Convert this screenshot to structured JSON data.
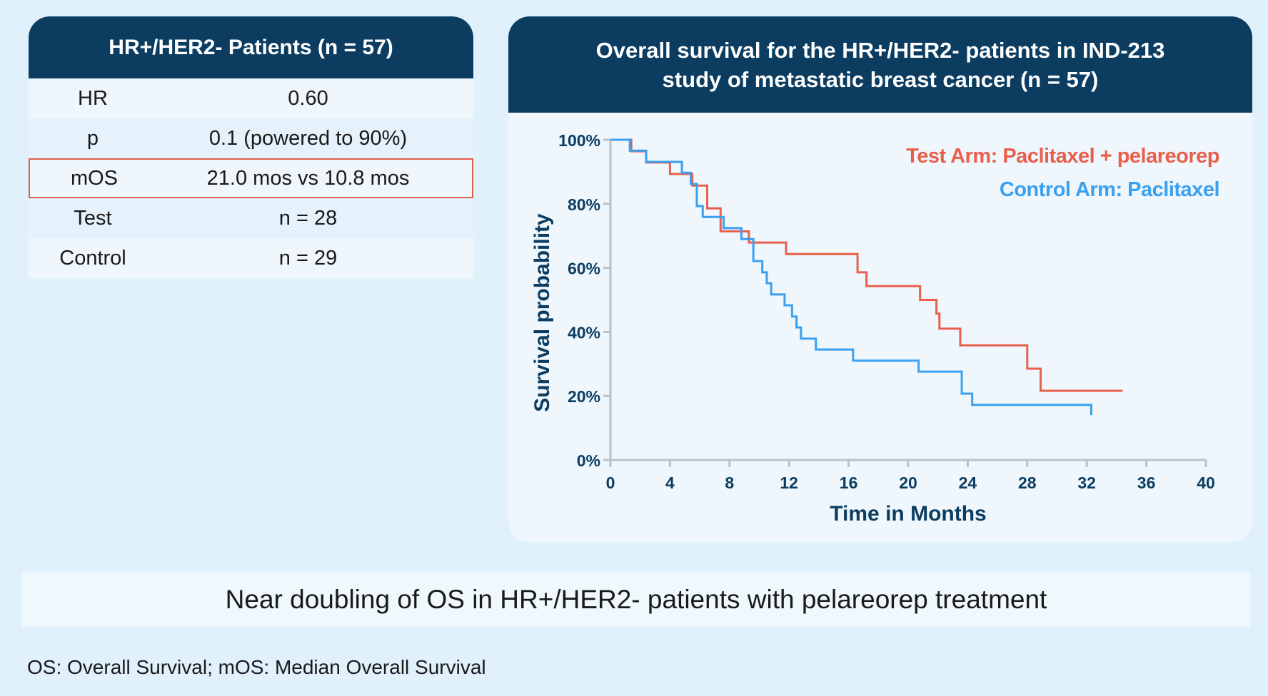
{
  "table": {
    "title": "HR+/HER2- Patients (n = 57)",
    "rows": [
      {
        "label": "HR",
        "value": "0.60"
      },
      {
        "label": "p",
        "value": "0.1 (powered to 90%)"
      },
      {
        "label": "mOS",
        "value": "21.0 mos vs 10.8 mos"
      },
      {
        "label": "Test",
        "value": "n = 28"
      },
      {
        "label": "Control",
        "value": "n = 29"
      }
    ]
  },
  "chart": {
    "title_line1": "Overall survival for the HR+/HER2- patients in IND-213",
    "title_line2": "study of metastatic breast cancer (n = 57)"
  },
  "chart_data": {
    "type": "line",
    "step": true,
    "xlabel": "Time in Months",
    "ylabel": "Survival probability",
    "xlim": [
      0,
      40
    ],
    "ylim": [
      0,
      100
    ],
    "xticks": [
      0,
      4,
      8,
      12,
      16,
      20,
      24,
      28,
      32,
      36,
      40
    ],
    "yticks": [
      0,
      20,
      40,
      60,
      80,
      100
    ],
    "ytick_labels": [
      "0%",
      "20%",
      "40%",
      "60%",
      "80%",
      "100%"
    ],
    "legend_position": "top-right",
    "series": [
      {
        "name": "Test Arm: Paclitaxel + pelareorep",
        "color": "#e8604c",
        "x": [
          0,
          1.4,
          2.4,
          4,
          5.5,
          6.5,
          7.4,
          9.3,
          11.8,
          16.6,
          17.2,
          20.8,
          21.9,
          22.1,
          23.5,
          28,
          28.9,
          34.4
        ],
        "y": [
          100,
          96.4,
          92.9,
          89.3,
          85.7,
          78.6,
          71.4,
          67.9,
          64.3,
          58.6,
          54.3,
          50.0,
          45.7,
          41.0,
          35.8,
          28.5,
          21.6,
          21.6
        ]
      },
      {
        "name": "Control Arm: Paclitaxel",
        "color": "#3aa0ef",
        "x": [
          0,
          1.3,
          2.4,
          4.8,
          5.4,
          5.8,
          6.2,
          6.6,
          7.6,
          8.8,
          9.6,
          10.2,
          10.5,
          10.8,
          11.0,
          11.7,
          12.2,
          12.5,
          12.8,
          13.8,
          16.3,
          20.7,
          23.6,
          24.3,
          32.3
        ],
        "y": [
          100,
          96.6,
          93.1,
          89.7,
          86.2,
          79.3,
          75.9,
          75.9,
          72.4,
          69.0,
          62.1,
          58.6,
          55.2,
          51.7,
          51.7,
          48.3,
          44.8,
          41.4,
          37.9,
          34.5,
          31.0,
          27.6,
          20.7,
          17.2,
          14.0
        ]
      }
    ]
  },
  "summary": "Near doubling of OS in HR+/HER2- patients with pelareorep treatment",
  "footnote": "OS: Overall Survival; mOS: Median Overall Survival"
}
